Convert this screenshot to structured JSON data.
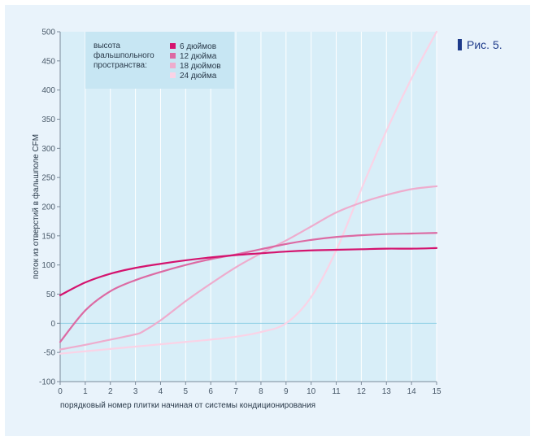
{
  "figure_label": "Рис. 5.",
  "chart_data": {
    "type": "line",
    "title": "",
    "xlabel": "порядковый номер плитки начиная от системы кондиционирования",
    "ylabel": "поток из отверстий в фальшполе CFM",
    "xlim": [
      0,
      15
    ],
    "ylim": [
      -100,
      500
    ],
    "x_ticks": [
      0,
      1,
      2,
      3,
      4,
      5,
      6,
      7,
      8,
      9,
      10,
      11,
      12,
      13,
      14,
      15
    ],
    "y_ticks": [
      -100,
      -50,
      0,
      50,
      100,
      150,
      200,
      250,
      300,
      350,
      400,
      450,
      500
    ],
    "grid": true,
    "legend": {
      "title_lines": [
        "высота",
        "фальшпольного",
        "пространства:"
      ],
      "placement": "top-left"
    },
    "series": [
      {
        "name": "6 дюймов",
        "color": "#d4136e",
        "x": [
          0,
          1,
          2,
          3,
          4,
          5,
          6,
          7,
          8,
          9,
          10,
          11,
          12,
          13,
          14,
          15
        ],
        "values": [
          48,
          70,
          85,
          95,
          102,
          108,
          113,
          117,
          120,
          123,
          125,
          126,
          127,
          128,
          128,
          129
        ]
      },
      {
        "name": "12 дюйма",
        "color": "#dc6aa3",
        "x": [
          0,
          1,
          2,
          3,
          4,
          5,
          6,
          7,
          8,
          9,
          10,
          11,
          12,
          13,
          14,
          15
        ],
        "values": [
          -32,
          22,
          55,
          74,
          88,
          100,
          110,
          118,
          127,
          136,
          143,
          148,
          151,
          153,
          154,
          155
        ]
      },
      {
        "name": "18 дюймов",
        "color": "#eeaccd",
        "x": [
          0,
          1,
          2,
          3,
          3.3,
          4,
          5,
          6,
          7,
          8,
          9,
          10,
          11,
          12,
          13,
          14,
          15
        ],
        "values": [
          -45,
          -37,
          -28,
          -19,
          -14,
          5,
          38,
          68,
          96,
          120,
          142,
          166,
          190,
          207,
          220,
          230,
          235
        ]
      },
      {
        "name": "24 дюйма",
        "color": "#fad3e6",
        "x": [
          0,
          1,
          2,
          3,
          4,
          5,
          6,
          7,
          8,
          9,
          10,
          11,
          12,
          13,
          14,
          15
        ],
        "values": [
          -52,
          -48,
          -44,
          -40,
          -36,
          -32,
          -28,
          -23,
          -15,
          0,
          45,
          125,
          230,
          330,
          420,
          500
        ]
      }
    ]
  }
}
